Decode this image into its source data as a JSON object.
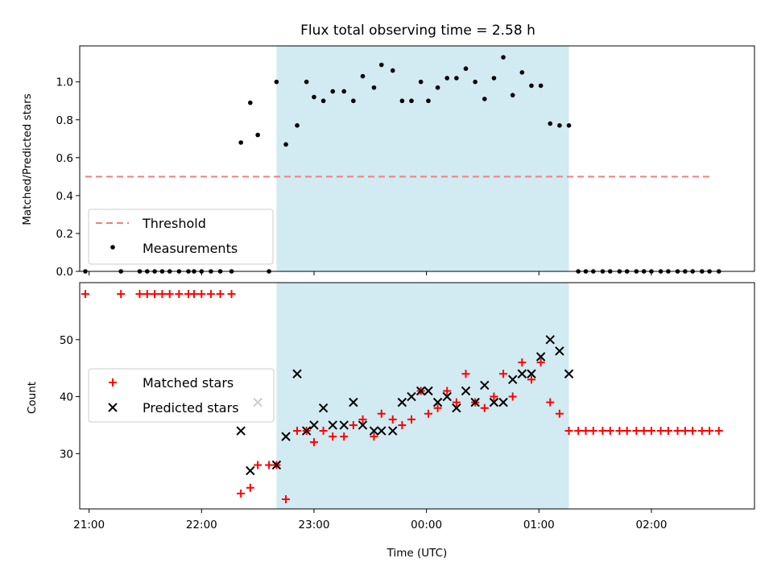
{
  "title": "Flux total observing time = 2.58 h",
  "colors": {
    "threshold": "#f08080",
    "measurement": "#000000",
    "matched": "#ff0000",
    "predicted": "#000000",
    "highlight": "#add8e6"
  },
  "chart_data": [
    {
      "type": "scatter",
      "ylabel": "Matched/Predicted stars",
      "ylim": [
        0,
        1.19
      ],
      "yticks": [
        0.0,
        0.2,
        0.4,
        0.6,
        0.8,
        1.0
      ],
      "ytick_labels": [
        "0.0",
        "0.2",
        "0.4",
        "0.6",
        "0.8",
        "1.0"
      ],
      "xlim": [
        "20:55",
        "02:55"
      ],
      "highlight_span": [
        "22:40",
        "01:16"
      ],
      "legend_position": "lower-left",
      "threshold": {
        "name": "Threshold",
        "x": [
          "20:58",
          "02:32"
        ],
        "y": 0.5
      },
      "series": [
        {
          "name": "Measurements",
          "points": [
            [
              "20:58",
              0.0
            ],
            [
              "21:17",
              0.0
            ],
            [
              "21:27",
              0.0
            ],
            [
              "21:31",
              0.0
            ],
            [
              "21:35",
              0.0
            ],
            [
              "21:39",
              0.0
            ],
            [
              "21:43",
              0.0
            ],
            [
              "21:48",
              0.0
            ],
            [
              "21:53",
              0.0
            ],
            [
              "21:56",
              0.0
            ],
            [
              "22:00",
              0.0
            ],
            [
              "22:05",
              0.0
            ],
            [
              "22:10",
              0.0
            ],
            [
              "22:16",
              0.0
            ],
            [
              "22:21",
              0.68
            ],
            [
              "22:26",
              0.89
            ],
            [
              "22:30",
              0.72
            ],
            [
              "22:36",
              0.0
            ],
            [
              "22:40",
              1.0
            ],
            [
              "22:45",
              0.67
            ],
            [
              "22:51",
              0.77
            ],
            [
              "22:56",
              1.0
            ],
            [
              "23:00",
              0.92
            ],
            [
              "23:05",
              0.9
            ],
            [
              "23:10",
              0.95
            ],
            [
              "23:16",
              0.95
            ],
            [
              "23:21",
              0.9
            ],
            [
              "23:26",
              1.03
            ],
            [
              "23:32",
              0.97
            ],
            [
              "23:36",
              1.09
            ],
            [
              "23:42",
              1.06
            ],
            [
              "23:47",
              0.9
            ],
            [
              "23:52",
              0.9
            ],
            [
              "23:57",
              1.0
            ],
            [
              "00:01",
              0.9
            ],
            [
              "00:06",
              0.97
            ],
            [
              "00:11",
              1.02
            ],
            [
              "00:16",
              1.02
            ],
            [
              "00:21",
              1.07
            ],
            [
              "00:26",
              1.0
            ],
            [
              "00:31",
              0.91
            ],
            [
              "00:36",
              1.02
            ],
            [
              "00:41",
              1.13
            ],
            [
              "00:46",
              0.93
            ],
            [
              "00:51",
              1.05
            ],
            [
              "00:56",
              0.98
            ],
            [
              "01:01",
              0.98
            ],
            [
              "01:06",
              0.78
            ],
            [
              "01:11",
              0.77
            ],
            [
              "01:16",
              0.77
            ],
            [
              "01:21",
              0.0
            ],
            [
              "01:25",
              0.0
            ],
            [
              "01:29",
              0.0
            ],
            [
              "01:34",
              0.0
            ],
            [
              "01:38",
              0.0
            ],
            [
              "01:43",
              0.0
            ],
            [
              "01:47",
              0.0
            ],
            [
              "01:52",
              0.0
            ],
            [
              "01:56",
              0.0
            ],
            [
              "02:00",
              0.0
            ],
            [
              "02:05",
              0.0
            ],
            [
              "02:09",
              0.0
            ],
            [
              "02:14",
              0.0
            ],
            [
              "02:18",
              0.0
            ],
            [
              "02:22",
              0.0
            ],
            [
              "02:27",
              0.0
            ],
            [
              "02:31",
              0.0
            ],
            [
              "02:36",
              0.0
            ]
          ]
        }
      ]
    },
    {
      "type": "scatter",
      "ylabel": "Count",
      "xlabel": "Time (UTC)",
      "ylim": [
        20.3,
        60.0
      ],
      "yticks": [
        30,
        40,
        50
      ],
      "ytick_labels": [
        "30",
        "40",
        "50"
      ],
      "xlim": [
        "20:55",
        "02:55"
      ],
      "xticks": [
        "21:00",
        "22:00",
        "23:00",
        "00:00",
        "01:00",
        "02:00"
      ],
      "xtick_labels": [
        "21:00",
        "22:00",
        "23:00",
        "00:00",
        "01:00",
        "02:00"
      ],
      "highlight_span": [
        "22:40",
        "01:16"
      ],
      "legend_position": "center-left",
      "series": [
        {
          "name": "Matched stars",
          "marker": "plus",
          "points": [
            [
              "20:58",
              58
            ],
            [
              "21:17",
              58
            ],
            [
              "21:27",
              58
            ],
            [
              "21:31",
              58
            ],
            [
              "21:35",
              58
            ],
            [
              "21:39",
              58
            ],
            [
              "21:43",
              58
            ],
            [
              "21:48",
              58
            ],
            [
              "21:53",
              58
            ],
            [
              "21:56",
              58
            ],
            [
              "22:00",
              58
            ],
            [
              "22:05",
              58
            ],
            [
              "22:10",
              58
            ],
            [
              "22:16",
              58
            ],
            [
              "22:21",
              23
            ],
            [
              "22:26",
              24
            ],
            [
              "22:30",
              28
            ],
            [
              "22:36",
              28
            ],
            [
              "22:40",
              28
            ],
            [
              "22:45",
              22
            ],
            [
              "22:51",
              34
            ],
            [
              "22:56",
              34
            ],
            [
              "23:00",
              32
            ],
            [
              "23:05",
              34
            ],
            [
              "23:10",
              33
            ],
            [
              "23:16",
              33
            ],
            [
              "23:21",
              35
            ],
            [
              "23:26",
              36
            ],
            [
              "23:32",
              33
            ],
            [
              "23:36",
              37
            ],
            [
              "23:42",
              36
            ],
            [
              "23:47",
              35
            ],
            [
              "23:52",
              36
            ],
            [
              "23:57",
              41
            ],
            [
              "00:01",
              37
            ],
            [
              "00:06",
              38
            ],
            [
              "00:11",
              41
            ],
            [
              "00:16",
              39
            ],
            [
              "00:21",
              44
            ],
            [
              "00:26",
              39
            ],
            [
              "00:31",
              38
            ],
            [
              "00:36",
              40
            ],
            [
              "00:41",
              44
            ],
            [
              "00:46",
              40
            ],
            [
              "00:51",
              46
            ],
            [
              "00:56",
              43
            ],
            [
              "01:01",
              46
            ],
            [
              "01:06",
              39
            ],
            [
              "01:11",
              37
            ],
            [
              "01:16",
              34
            ],
            [
              "01:21",
              34
            ],
            [
              "01:25",
              34
            ],
            [
              "01:29",
              34
            ],
            [
              "01:34",
              34
            ],
            [
              "01:38",
              34
            ],
            [
              "01:43",
              34
            ],
            [
              "01:47",
              34
            ],
            [
              "01:52",
              34
            ],
            [
              "01:56",
              34
            ],
            [
              "02:00",
              34
            ],
            [
              "02:05",
              34
            ],
            [
              "02:09",
              34
            ],
            [
              "02:14",
              34
            ],
            [
              "02:18",
              34
            ],
            [
              "02:22",
              34
            ],
            [
              "02:27",
              34
            ],
            [
              "02:31",
              34
            ],
            [
              "02:36",
              34
            ]
          ]
        },
        {
          "name": "Predicted stars",
          "marker": "x",
          "points": [
            [
              "22:21",
              34
            ],
            [
              "22:26",
              27
            ],
            [
              "22:30",
              39
            ],
            [
              "22:40",
              28
            ],
            [
              "22:45",
              33
            ],
            [
              "22:51",
              44
            ],
            [
              "22:56",
              34
            ],
            [
              "23:00",
              35
            ],
            [
              "23:05",
              38
            ],
            [
              "23:10",
              35
            ],
            [
              "23:16",
              35
            ],
            [
              "23:21",
              39
            ],
            [
              "23:26",
              35
            ],
            [
              "23:32",
              34
            ],
            [
              "23:36",
              34
            ],
            [
              "23:42",
              34
            ],
            [
              "23:47",
              39
            ],
            [
              "23:52",
              40
            ],
            [
              "23:57",
              41
            ],
            [
              "00:01",
              41
            ],
            [
              "00:06",
              39
            ],
            [
              "00:11",
              40
            ],
            [
              "00:16",
              38
            ],
            [
              "00:21",
              41
            ],
            [
              "00:26",
              39
            ],
            [
              "00:31",
              42
            ],
            [
              "00:36",
              39
            ],
            [
              "00:41",
              39
            ],
            [
              "00:46",
              43
            ],
            [
              "00:51",
              44
            ],
            [
              "00:56",
              44
            ],
            [
              "01:01",
              47
            ],
            [
              "01:06",
              50
            ],
            [
              "01:11",
              48
            ],
            [
              "01:16",
              44
            ]
          ]
        }
      ]
    }
  ]
}
